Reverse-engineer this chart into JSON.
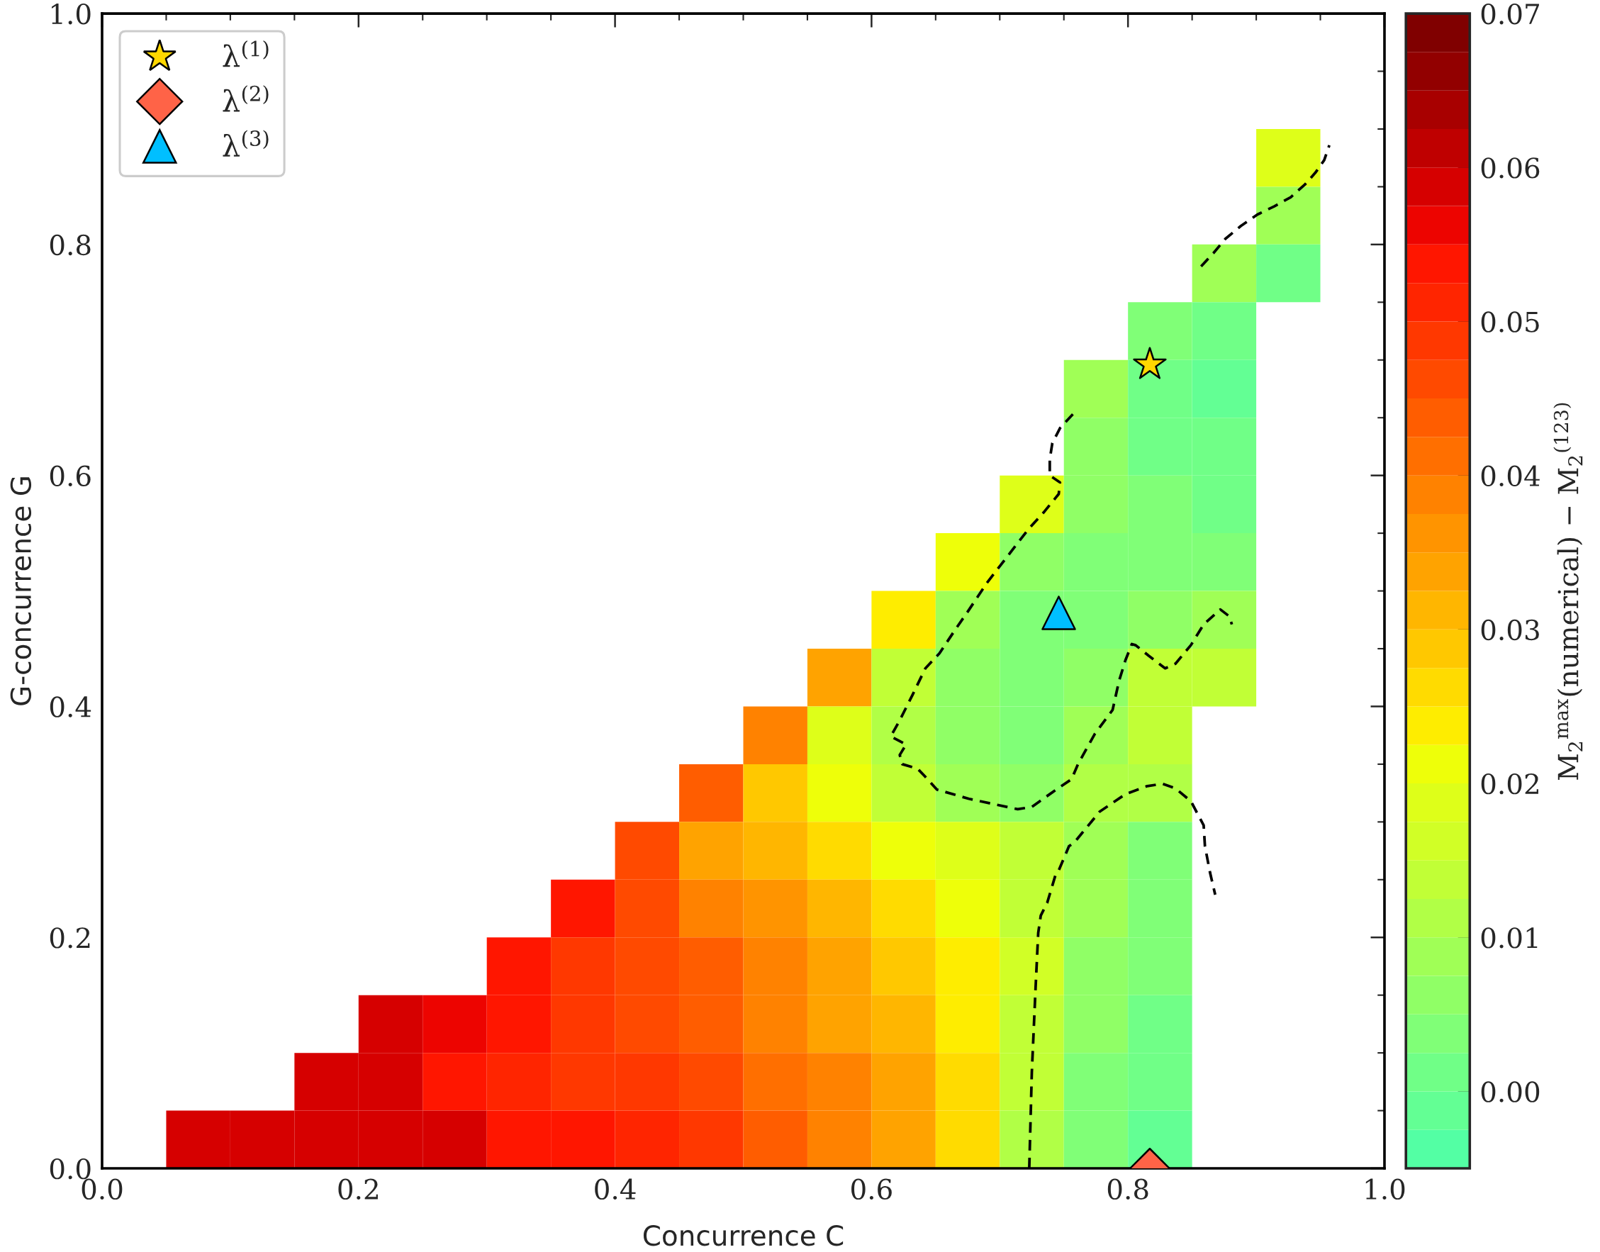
{
  "chart_data": {
    "type": "heatmap",
    "xlabel": "Concurrence C",
    "ylabel": "G-concurrence G",
    "clabel": "M$_{2}$$^{max}$(numerical) − M$_{2}$$^{(123)}$",
    "xlim": [
      0,
      1
    ],
    "ylim": [
      0,
      1
    ],
    "xticks": [
      {
        "value": 0,
        "label": "0.0"
      },
      0.2,
      0.4,
      0.6,
      0.8,
      {
        "value": 1,
        "label": "1.0"
      }
    ],
    "yticks": [
      {
        "value": 0,
        "label": "0.0"
      },
      0.2,
      0.4,
      0.6,
      0.8,
      {
        "value": 1,
        "label": "1.0"
      }
    ],
    "clim": [
      -0.005,
      0.07
    ],
    "cticks": [
      {
        "value": 0,
        "label": "0.00"
      },
      0.01,
      0.02,
      0.03,
      0.04,
      0.05,
      0.06,
      0.07
    ],
    "x": [
      0.075,
      0.125,
      0.175,
      0.225,
      0.275,
      0.325,
      0.375,
      0.425,
      0.475,
      0.525,
      0.575,
      0.625,
      0.675,
      0.725,
      0.775,
      0.825,
      0.875,
      0.925
    ],
    "y": [
      0.875,
      0.825,
      0.775,
      0.725,
      0.675,
      0.625,
      0.575,
      0.525,
      0.475,
      0.425,
      0.375,
      0.325,
      0.275,
      0.225,
      0.175,
      0.125,
      0.075,
      0.025
    ],
    "cells": [
      [
        null,
        null,
        null,
        null,
        null,
        null,
        null,
        null,
        null,
        null,
        null,
        null,
        null,
        null,
        null,
        null,
        null,
        0.018
      ],
      [
        null,
        null,
        null,
        null,
        null,
        null,
        null,
        null,
        null,
        null,
        null,
        null,
        null,
        null,
        null,
        null,
        null,
        0.009
      ],
      [
        null,
        null,
        null,
        null,
        null,
        null,
        null,
        null,
        null,
        null,
        null,
        null,
        null,
        null,
        null,
        null,
        0.008,
        0.002
      ],
      [
        null,
        null,
        null,
        null,
        null,
        null,
        null,
        null,
        null,
        null,
        null,
        null,
        null,
        null,
        null,
        0.005,
        0.001,
        null
      ],
      [
        null,
        null,
        null,
        null,
        null,
        null,
        null,
        null,
        null,
        null,
        null,
        null,
        null,
        null,
        0.01,
        0.001,
        0.0,
        null
      ],
      [
        null,
        null,
        null,
        null,
        null,
        null,
        null,
        null,
        null,
        null,
        null,
        null,
        null,
        null,
        0.006,
        0.002,
        0.001,
        null
      ],
      [
        null,
        null,
        null,
        null,
        null,
        null,
        null,
        null,
        null,
        null,
        null,
        null,
        null,
        0.018,
        0.006,
        0.003,
        0.002,
        null
      ],
      [
        null,
        null,
        null,
        null,
        null,
        null,
        null,
        null,
        null,
        null,
        null,
        null,
        0.022,
        0.007,
        0.004,
        0.003,
        0.003,
        null
      ],
      [
        null,
        null,
        null,
        null,
        null,
        null,
        null,
        null,
        null,
        null,
        null,
        0.025,
        0.01,
        0.004,
        0.004,
        0.006,
        0.01,
        null
      ],
      [
        null,
        null,
        null,
        null,
        null,
        null,
        null,
        null,
        null,
        null,
        0.035,
        0.013,
        0.007,
        0.004,
        0.006,
        0.013,
        0.014,
        null
      ],
      [
        null,
        null,
        null,
        null,
        null,
        null,
        null,
        null,
        null,
        0.04,
        0.018,
        0.011,
        0.006,
        0.004,
        0.01,
        0.014,
        null,
        null
      ],
      [
        null,
        null,
        null,
        null,
        null,
        null,
        null,
        null,
        0.045,
        0.03,
        0.022,
        0.014,
        0.01,
        0.006,
        0.012,
        0.011,
        null,
        null
      ],
      [
        null,
        null,
        null,
        null,
        null,
        null,
        null,
        0.046,
        0.033,
        0.031,
        0.026,
        0.021,
        0.018,
        0.015,
        0.008,
        0.005,
        null,
        null
      ],
      [
        null,
        null,
        null,
        null,
        null,
        null,
        0.053,
        0.046,
        0.04,
        0.036,
        0.032,
        0.027,
        0.021,
        0.015,
        0.008,
        0.005,
        null,
        null
      ],
      [
        null,
        null,
        null,
        null,
        null,
        0.055,
        0.05,
        0.047,
        0.043,
        0.038,
        0.034,
        0.029,
        0.023,
        0.016,
        0.007,
        0.004,
        null,
        null
      ],
      [
        null,
        null,
        null,
        0.06,
        0.057,
        0.053,
        0.05,
        0.047,
        0.044,
        0.04,
        0.035,
        0.031,
        0.025,
        0.014,
        0.006,
        0.002,
        null,
        null
      ],
      [
        null,
        null,
        0.059,
        0.058,
        0.055,
        0.052,
        0.05,
        0.049,
        0.046,
        0.042,
        0.038,
        0.033,
        0.027,
        0.013,
        0.005,
        0.001,
        null,
        null
      ],
      [
        0.059,
        0.059,
        0.059,
        0.059,
        0.058,
        0.055,
        0.055,
        0.052,
        0.048,
        0.044,
        0.039,
        0.033,
        0.026,
        0.012,
        0.005,
        -0.002,
        null,
        null
      ]
    ],
    "series": [
      {
        "type": "line",
        "color": "#000000",
        "line_style": "dashed",
        "marker": "none",
        "x": [
          0.857,
          0.867,
          0.876,
          0.888,
          0.901,
          0.914,
          0.927,
          0.938,
          0.946,
          0.953,
          0.957
        ],
        "values": [
          0.781,
          0.793,
          0.805,
          0.816,
          0.826,
          0.833,
          0.841,
          0.852,
          0.862,
          0.873,
          0.886
        ]
      },
      {
        "type": "line",
        "color": "#000000",
        "line_style": "dashed",
        "marker": "none",
        "x": [
          0.757,
          0.747,
          0.741,
          0.739,
          0.739,
          0.747,
          0.746,
          0.735,
          0.722,
          0.706,
          0.69,
          0.675,
          0.665,
          0.653,
          0.642,
          0.632,
          0.622,
          0.615,
          0.627,
          0.622,
          0.624,
          0.636,
          0.642,
          0.651,
          0.676,
          0.714,
          0.725,
          0.744,
          0.756,
          0.761,
          0.774,
          0.788,
          0.793,
          0.798,
          0.803,
          0.806,
          0.816,
          0.829,
          0.837,
          0.849,
          0.859,
          0.872,
          0.879,
          0.881
        ],
        "values": [
          0.653,
          0.641,
          0.628,
          0.614,
          0.6,
          0.594,
          0.584,
          0.569,
          0.553,
          0.53,
          0.507,
          0.482,
          0.466,
          0.446,
          0.433,
          0.41,
          0.388,
          0.374,
          0.367,
          0.358,
          0.35,
          0.346,
          0.339,
          0.328,
          0.32,
          0.311,
          0.313,
          0.328,
          0.337,
          0.35,
          0.376,
          0.397,
          0.422,
          0.44,
          0.454,
          0.453,
          0.444,
          0.433,
          0.437,
          0.453,
          0.471,
          0.484,
          0.478,
          0.471
        ]
      },
      {
        "type": "line",
        "color": "#000000",
        "line_style": "dashed",
        "marker": "none",
        "x": [
          0.723,
          0.725,
          0.728,
          0.73,
          0.732,
          0.737,
          0.744,
          0.746,
          0.754,
          0.758,
          0.778,
          0.798,
          0.815,
          0.827,
          0.837,
          0.849,
          0.859,
          0.86,
          0.864,
          0.868
        ],
        "values": [
          0.0,
          0.083,
          0.158,
          0.204,
          0.219,
          0.23,
          0.256,
          0.258,
          0.279,
          0.282,
          0.309,
          0.324,
          0.331,
          0.333,
          0.329,
          0.318,
          0.297,
          0.279,
          0.256,
          0.237
        ]
      },
      {
        "type": "scatter",
        "name": "λ$^{(1)}$",
        "color": "#ffd700",
        "marker": "star",
        "x": [
          0.817
        ],
        "values": [
          0.696
        ]
      },
      {
        "type": "scatter",
        "name": "λ$^{(2)}$",
        "color": "#ff6347",
        "marker": "diamond",
        "x": [
          0.817
        ],
        "values": [
          0.0
        ]
      },
      {
        "type": "scatter",
        "name": "λ$^{(3)}$",
        "color": "#00bfff",
        "marker": "triangle",
        "x": [
          0.746
        ],
        "values": [
          0.481
        ]
      }
    ],
    "legend": "top left"
  }
}
